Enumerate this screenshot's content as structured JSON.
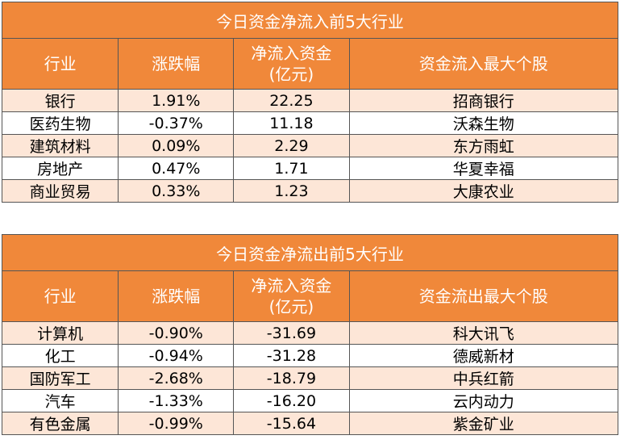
{
  "inflow": {
    "title": "今日资金净流入前5大行业",
    "headers": {
      "industry": "行业",
      "change": "涨跌幅",
      "flow_line1": "净流入资金",
      "flow_line2": "(亿元)",
      "top_stock": "资金流入最大个股"
    },
    "rows": [
      {
        "industry": "银行",
        "change": "1.91%",
        "flow": "22.25",
        "stock": "招商银行"
      },
      {
        "industry": "医药生物",
        "change": "-0.37%",
        "flow": "11.18",
        "stock": "沃森生物"
      },
      {
        "industry": "建筑材料",
        "change": "0.09%",
        "flow": "2.29",
        "stock": "东方雨虹"
      },
      {
        "industry": "房地产",
        "change": "0.47%",
        "flow": "1.71",
        "stock": "华夏幸福"
      },
      {
        "industry": "商业贸易",
        "change": "0.33%",
        "flow": "1.23",
        "stock": "大康农业"
      }
    ]
  },
  "outflow": {
    "title": "今日资金净流出前5大行业",
    "headers": {
      "industry": "行业",
      "change": "涨跌幅",
      "flow_line1": "净流入资金",
      "flow_line2": "(亿元)",
      "top_stock": "资金流出最大个股"
    },
    "rows": [
      {
        "industry": "计算机",
        "change": "-0.90%",
        "flow": "-31.69",
        "stock": "科大讯飞"
      },
      {
        "industry": "化工",
        "change": "-0.94%",
        "flow": "-31.28",
        "stock": "德威新材"
      },
      {
        "industry": "国防军工",
        "change": "-2.68%",
        "flow": "-18.79",
        "stock": "中兵红箭"
      },
      {
        "industry": "汽车",
        "change": "-1.33%",
        "flow": "-16.20",
        "stock": "云内动力"
      },
      {
        "industry": "有色金属",
        "change": "-0.99%",
        "flow": "-15.64",
        "stock": "紫金矿业"
      }
    ]
  },
  "colors": {
    "header_bg": "#f0883a",
    "header_text": "#ffffff",
    "row_alt_bg": "#fde6d7",
    "border": "#555555"
  }
}
